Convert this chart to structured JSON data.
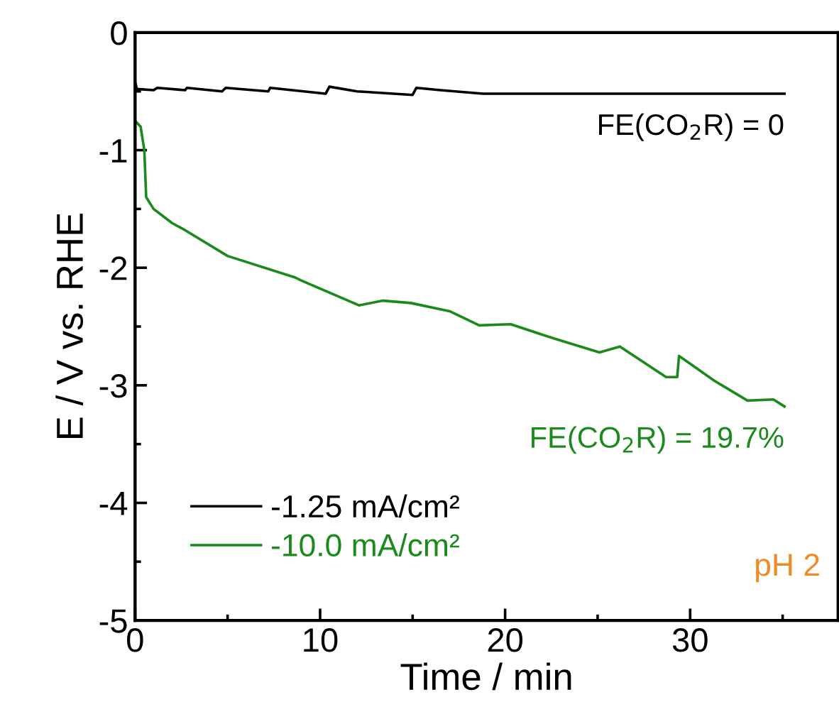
{
  "chart_data": {
    "type": "line",
    "xlabel": "Time / min",
    "ylabel": "E / V vs. RHE",
    "xlim": [
      0,
      38
    ],
    "xticks": [
      0,
      10,
      20,
      30
    ],
    "ylim": [
      -5,
      0
    ],
    "yticks": [
      {
        "value": -5,
        "label": "-5"
      },
      {
        "value": -4,
        "label": "-4"
      },
      {
        "value": -3,
        "label": "-3"
      },
      {
        "value": -2,
        "label": "-2"
      },
      {
        "value": -1,
        "label": "-1"
      },
      0
    ],
    "grid": false,
    "legend": "bottom left",
    "line_style": "solid",
    "marker": "none",
    "series": [
      {
        "name": "-1.25 mA/cm²",
        "color": "#000000",
        "x": [
          0,
          0.1,
          1.0,
          1.2,
          2.7,
          2.8,
          4.7,
          4.9,
          7.2,
          7.3,
          10.3,
          10.5,
          12,
          15.0,
          15.2,
          16.5,
          18.8,
          35.1
        ],
        "values": [
          -0.42,
          -0.48,
          -0.49,
          -0.47,
          -0.49,
          -0.47,
          -0.5,
          -0.47,
          -0.5,
          -0.47,
          -0.52,
          -0.46,
          -0.5,
          -0.53,
          -0.47,
          -0.49,
          -0.52,
          -0.52
        ]
      },
      {
        "name": "-10.0 mA/cm²",
        "color": "#1a8a1a",
        "x": [
          0,
          0.3,
          0.5,
          0.6,
          1.0,
          2.0,
          2.7,
          5.0,
          8.6,
          9.0,
          12.1,
          13.4,
          14.9,
          17.0,
          18.6,
          20.3,
          22.6,
          25.1,
          26.2,
          28.7,
          29.3,
          29.4,
          31.3,
          33.1,
          34.5,
          35.1
        ],
        "values": [
          -0.75,
          -0.8,
          -1.0,
          -1.4,
          -1.5,
          -1.62,
          -1.68,
          -1.9,
          -2.08,
          -2.11,
          -2.32,
          -2.28,
          -2.3,
          -2.37,
          -2.49,
          -2.48,
          -2.6,
          -2.72,
          -2.67,
          -2.93,
          -2.93,
          -2.75,
          -2.96,
          -3.13,
          -3.12,
          -3.18
        ]
      }
    ],
    "annotations": [
      {
        "text": "FE(CO$_{2}$R) = 0",
        "x": 35.1,
        "y": -0.52
      },
      {
        "text": "FE(CO$_{2}$R) = 19.7%",
        "x": 35.1,
        "y": -3.18
      },
      {
        "text": "pH 2"
      }
    ]
  }
}
